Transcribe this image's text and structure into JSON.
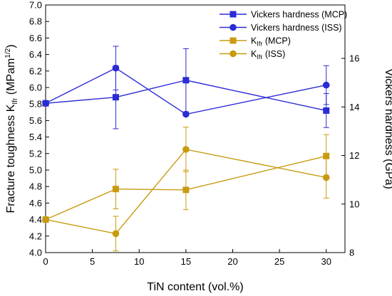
{
  "chart_data": {
    "type": "line",
    "x": [
      0,
      7.5,
      15,
      30
    ],
    "xlabel": "TiN content (vol.%)",
    "xlim": [
      0,
      32
    ],
    "xticks": [
      0,
      5,
      10,
      15,
      20,
      25,
      30
    ],
    "ylabel_left": {
      "main": "Fracture toughness K",
      "sub": "Ifr",
      "unit_open": " (MPam",
      "unit_sup": "1/2",
      "unit_close": ")"
    },
    "ylim_left": [
      4.0,
      7.0
    ],
    "yticks_left": [
      "4.0",
      "4.2",
      "4.4",
      "4.6",
      "4.8",
      "5.0",
      "5.2",
      "5.4",
      "5.6",
      "5.8",
      "6.0",
      "6.2",
      "6.4",
      "6.6",
      "6.8",
      "7.0"
    ],
    "ylabel_right": "Vickers hardness (GPa)",
    "ylim_right": [
      8,
      18.2
    ],
    "yticks_right": [
      "8",
      "10",
      "12",
      "14",
      "16"
    ],
    "grid": false,
    "legend_position": "top-right",
    "series": [
      {
        "name": "Vickers hardness (MCP)",
        "label_main": "Vickers hardness (MCP)",
        "label_sub": "",
        "label_rest": "",
        "axis": "right",
        "marker": "square",
        "color": "#2b2bd6",
        "values": [
          14.15,
          14.4,
          15.1,
          13.85
        ],
        "errors": [
          0,
          1.3,
          1.3,
          0.7
        ]
      },
      {
        "name": "Vickers hardness (ISS)",
        "label_main": "Vickers hardness (ISS)",
        "label_sub": "",
        "label_rest": "",
        "axis": "right",
        "marker": "circle",
        "color": "#2b2bd6",
        "values": [
          14.15,
          15.6,
          13.7,
          14.9
        ],
        "errors": [
          0,
          0.9,
          0,
          0.8
        ]
      },
      {
        "name": "Kifr (MCP)",
        "label_main": "K",
        "label_sub": "Ifr",
        "label_rest": " (MCP)",
        "axis": "left",
        "marker": "square",
        "color": "#c99a10",
        "values": [
          4.4,
          4.77,
          4.76,
          5.17
        ],
        "errors": [
          0,
          0.24,
          0.24,
          0.26
        ]
      },
      {
        "name": "Kifr (ISS)",
        "label_main": "K",
        "label_sub": "Ifr",
        "label_rest": " (ISS)",
        "axis": "left",
        "marker": "circle",
        "color": "#c99a10",
        "values": [
          4.4,
          4.23,
          5.25,
          4.91
        ],
        "errors": [
          0,
          0.21,
          0.27,
          0.25
        ]
      }
    ]
  }
}
